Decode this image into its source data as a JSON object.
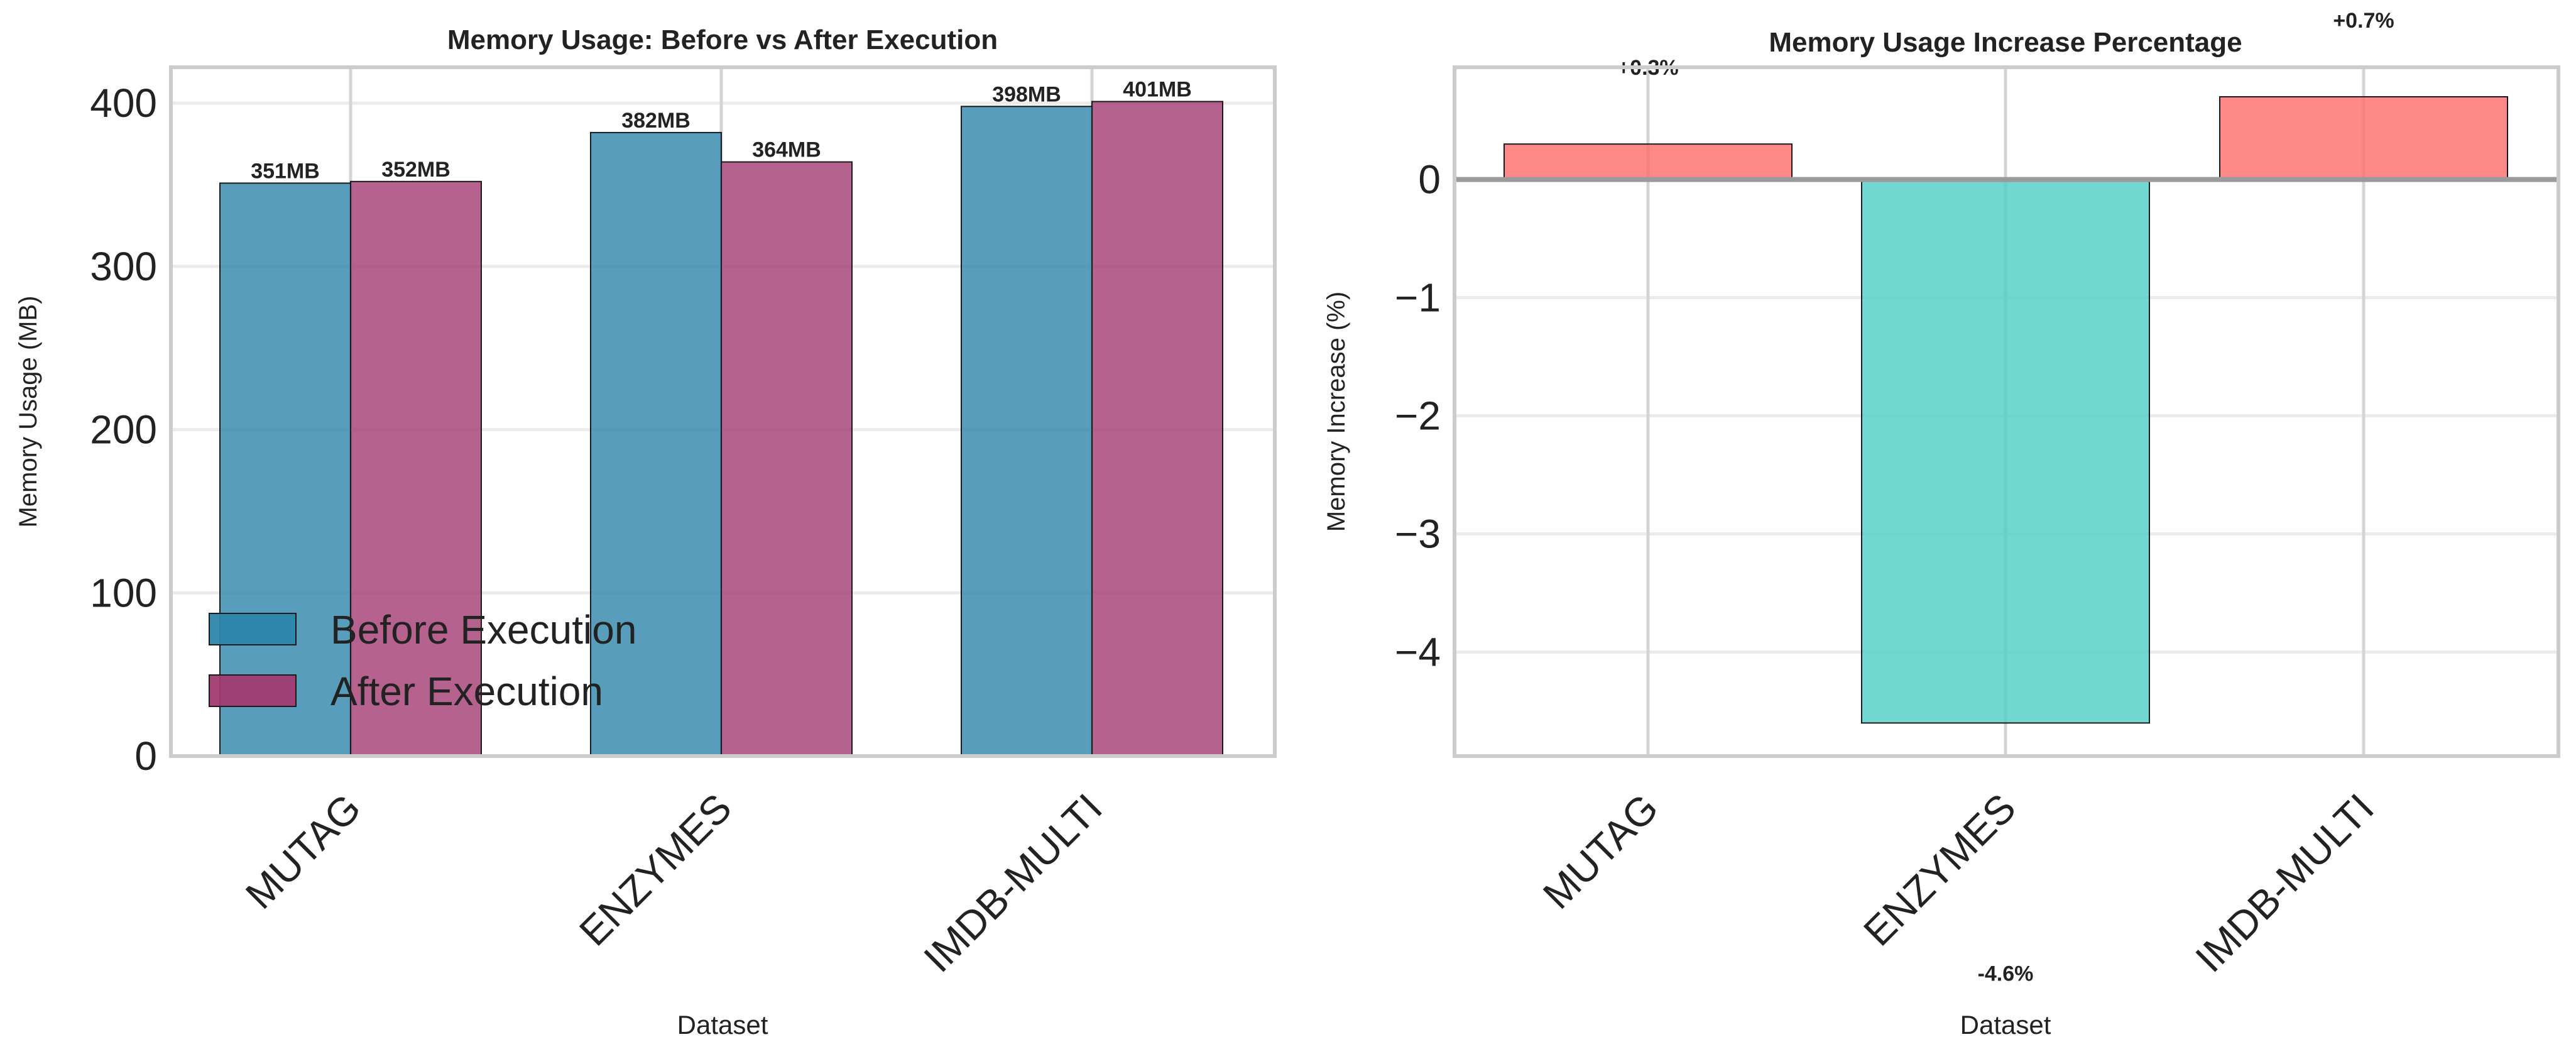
{
  "chart_data": [
    {
      "type": "bar",
      "title": "Memory Usage: Before vs After Execution",
      "xlabel": "Dataset",
      "ylabel": "Memory Usage (MB)",
      "categories": [
        "MUTAG",
        "ENZYMES",
        "IMDB-MULTI"
      ],
      "series": [
        {
          "name": "Before Execution",
          "values": [
            351,
            382,
            398
          ],
          "labels": [
            "351MB",
            "382MB",
            "398MB"
          ],
          "color": "#2E86AB"
        },
        {
          "name": "After Execution",
          "values": [
            352,
            364,
            401
          ],
          "labels": [
            "352MB",
            "364MB",
            "401MB"
          ],
          "color": "#A23B72"
        }
      ],
      "ylim": [
        0,
        422
      ],
      "yticks": [
        "0",
        "100",
        "200",
        "300",
        "400"
      ],
      "grid": true,
      "legend_position": "lower-left"
    },
    {
      "type": "bar",
      "title": "Memory Usage Increase Percentage",
      "xlabel": "Dataset",
      "ylabel": "Memory Increase (%)",
      "categories": [
        "MUTAG",
        "ENZYMES",
        "IMDB-MULTI"
      ],
      "values": [
        0.3,
        -4.6,
        0.7
      ],
      "labels": [
        "+0.3%",
        "-4.6%",
        "+0.7%"
      ],
      "positive_color": "#FF6B6B",
      "negative_color": "#4ECDC4",
      "ylim": [
        -4.88,
        0.95
      ],
      "yticks": [
        "−4",
        "−3",
        "−2",
        "−1",
        "0"
      ],
      "grid": true
    }
  ]
}
